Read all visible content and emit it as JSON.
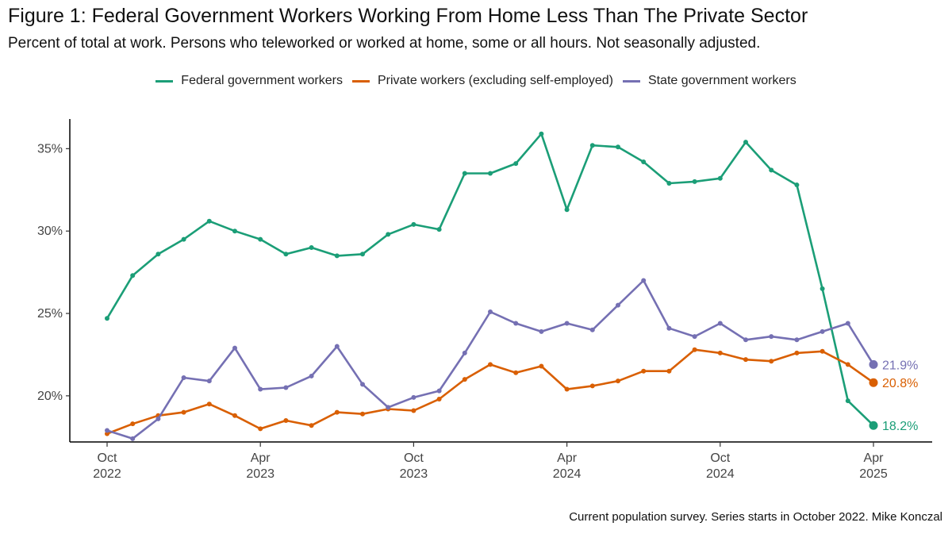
{
  "header": {
    "title": "Figure 1: Federal Government Workers Working From Home Less Than The Private Sector",
    "subtitle": "Percent of total at work. Persons who teleworked or worked at home, some or all hours. Not seasonally adjusted."
  },
  "caption": "Current population survey. Series starts in October 2022. Mike Konczal",
  "chart_data": {
    "type": "line",
    "legend_position": "top",
    "grid": false,
    "x": [
      "2022-10",
      "2022-11",
      "2022-12",
      "2023-01",
      "2023-02",
      "2023-03",
      "2023-04",
      "2023-05",
      "2023-06",
      "2023-07",
      "2023-08",
      "2023-09",
      "2023-10",
      "2023-11",
      "2023-12",
      "2024-01",
      "2024-02",
      "2024-03",
      "2024-04",
      "2024-05",
      "2024-06",
      "2024-07",
      "2024-08",
      "2024-09",
      "2024-10",
      "2024-11",
      "2024-12",
      "2025-01",
      "2025-02",
      "2025-03",
      "2025-04"
    ],
    "x_ticks": [
      {
        "x": "2022-10",
        "label": [
          "Oct",
          "2022"
        ]
      },
      {
        "x": "2023-04",
        "label": [
          "Apr",
          "2023"
        ]
      },
      {
        "x": "2023-10",
        "label": [
          "Oct",
          "2023"
        ]
      },
      {
        "x": "2024-04",
        "label": [
          "Apr",
          "2024"
        ]
      },
      {
        "x": "2024-10",
        "label": [
          "Oct",
          "2024"
        ]
      },
      {
        "x": "2025-04",
        "label": [
          "Apr",
          "2025"
        ]
      }
    ],
    "ylim": [
      17.2,
      36.8
    ],
    "y_ticks": [
      {
        "value": 20,
        "label": "20%"
      },
      {
        "value": 25,
        "label": "25%"
      },
      {
        "value": 30,
        "label": "30%"
      },
      {
        "value": 35,
        "label": "35%"
      }
    ],
    "series": [
      {
        "name": "Federal government workers",
        "color": "#1b9e77",
        "values": [
          24.7,
          27.3,
          28.6,
          29.5,
          30.6,
          30.0,
          29.5,
          28.6,
          29.0,
          28.5,
          28.6,
          29.8,
          30.4,
          30.1,
          33.5,
          33.5,
          34.1,
          35.9,
          31.3,
          35.2,
          35.1,
          34.2,
          32.9,
          33.0,
          33.2,
          35.4,
          33.7,
          32.8,
          26.5,
          19.7,
          18.2
        ],
        "end_label": "18.2%"
      },
      {
        "name": "Private workers (excluding self-employed)",
        "color": "#d95f02",
        "values": [
          17.7,
          18.3,
          18.8,
          19.0,
          19.5,
          18.8,
          18.0,
          18.5,
          18.2,
          19.0,
          18.9,
          19.2,
          19.1,
          19.8,
          21.0,
          21.9,
          21.4,
          21.8,
          20.4,
          20.6,
          20.9,
          21.5,
          21.5,
          22.8,
          22.6,
          22.2,
          22.1,
          22.6,
          22.7,
          21.9,
          20.8
        ],
        "end_label": "20.8%"
      },
      {
        "name": "State government workers",
        "color": "#7570b3",
        "values": [
          17.9,
          17.4,
          18.6,
          21.1,
          20.9,
          22.9,
          20.4,
          20.5,
          21.2,
          23.0,
          20.7,
          19.3,
          19.9,
          20.3,
          22.6,
          25.1,
          24.4,
          23.9,
          24.4,
          24.0,
          25.5,
          27.0,
          24.1,
          23.6,
          24.4,
          23.4,
          23.6,
          23.4,
          23.9,
          24.4,
          21.9
        ],
        "end_label": "21.9%"
      }
    ]
  }
}
